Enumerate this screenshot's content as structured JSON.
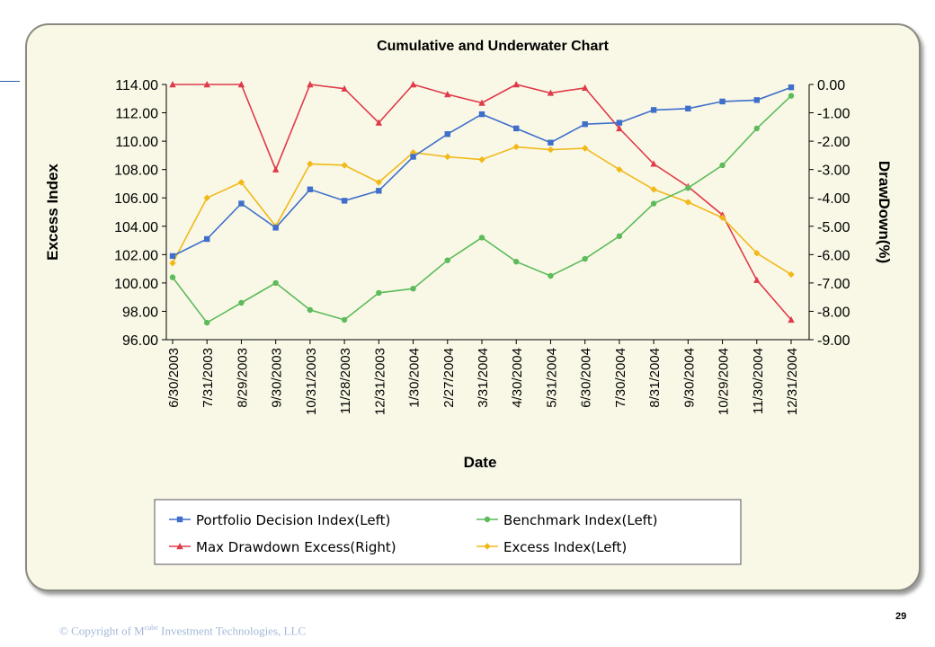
{
  "footer": {
    "copyright_prefix": "© Copyright of M",
    "copyright_sup": "cube",
    "copyright_suffix": " Investment Technologies, LLC",
    "page_number": "29"
  },
  "colors": {
    "portfolio": "#3f6fcb",
    "benchmark": "#5dbb5b",
    "drawdown": "#e03a4a",
    "excess": "#f2b818"
  },
  "chart_data": {
    "type": "line",
    "title": "Cumulative and Underwater Chart",
    "xlabel": "Date",
    "ylabel": "Excess Index",
    "y2label": "DrawDown(%)",
    "categories": [
      "6/30/2003",
      "7/31/2003",
      "8/29/2003",
      "9/30/2003",
      "10/31/2003",
      "11/28/2003",
      "12/31/2003",
      "1/30/2004",
      "2/27/2004",
      "3/31/2004",
      "4/30/2004",
      "5/31/2004",
      "6/30/2004",
      "7/30/2004",
      "8/31/2004",
      "9/30/2004",
      "10/29/2004",
      "11/30/2004",
      "12/31/2004"
    ],
    "ylim": [
      96,
      114
    ],
    "yticks": [
      "96.00",
      "98.00",
      "100.00",
      "102.00",
      "104.00",
      "106.00",
      "108.00",
      "110.00",
      "112.00",
      "114.00"
    ],
    "y2lim": [
      -9,
      0
    ],
    "y2ticks": [
      "-9.00",
      "-8.00",
      "-7.00",
      "-6.00",
      "-5.00",
      "-4.00",
      "-3.00",
      "-2.00",
      "-1.00",
      "0.00"
    ],
    "legend_position": "bottom",
    "grid": false,
    "series": [
      {
        "name": "Portfolio Decision Index(Left)",
        "axis": "left",
        "marker": "square",
        "color": "#3f6fcb",
        "values": [
          101.9,
          103.1,
          105.6,
          103.9,
          106.6,
          105.8,
          106.5,
          108.9,
          110.5,
          111.9,
          110.9,
          109.9,
          111.2,
          111.3,
          112.2,
          112.3,
          112.8,
          112.9,
          113.8
        ]
      },
      {
        "name": "Benchmark Index(Left)",
        "axis": "left",
        "marker": "circle",
        "color": "#5dbb5b",
        "values": [
          100.4,
          97.2,
          98.6,
          100.0,
          98.1,
          97.4,
          99.3,
          99.6,
          101.6,
          103.2,
          101.5,
          100.5,
          101.7,
          103.3,
          105.6,
          106.7,
          108.3,
          110.9,
          113.2
        ]
      },
      {
        "name": "Max Drawdown Excess(Right)",
        "axis": "right",
        "marker": "triangle",
        "color": "#e03a4a",
        "values": [
          0.0,
          0.0,
          0.0,
          -3.0,
          0.0,
          -0.15,
          -1.35,
          0.0,
          -0.35,
          -0.65,
          0.0,
          -0.3,
          -0.12,
          -1.55,
          -2.8,
          -3.6,
          -4.6,
          -6.9,
          -8.3
        ]
      },
      {
        "name": "Excess Index(Left)",
        "axis": "left",
        "marker": "diamond",
        "color": "#f2b818",
        "values": [
          101.4,
          106.0,
          107.1,
          104.0,
          108.4,
          108.3,
          107.1,
          109.2,
          108.9,
          108.7,
          109.6,
          109.4,
          109.5,
          108.0,
          106.6,
          105.7,
          104.6,
          102.1,
          100.6
        ]
      }
    ]
  }
}
